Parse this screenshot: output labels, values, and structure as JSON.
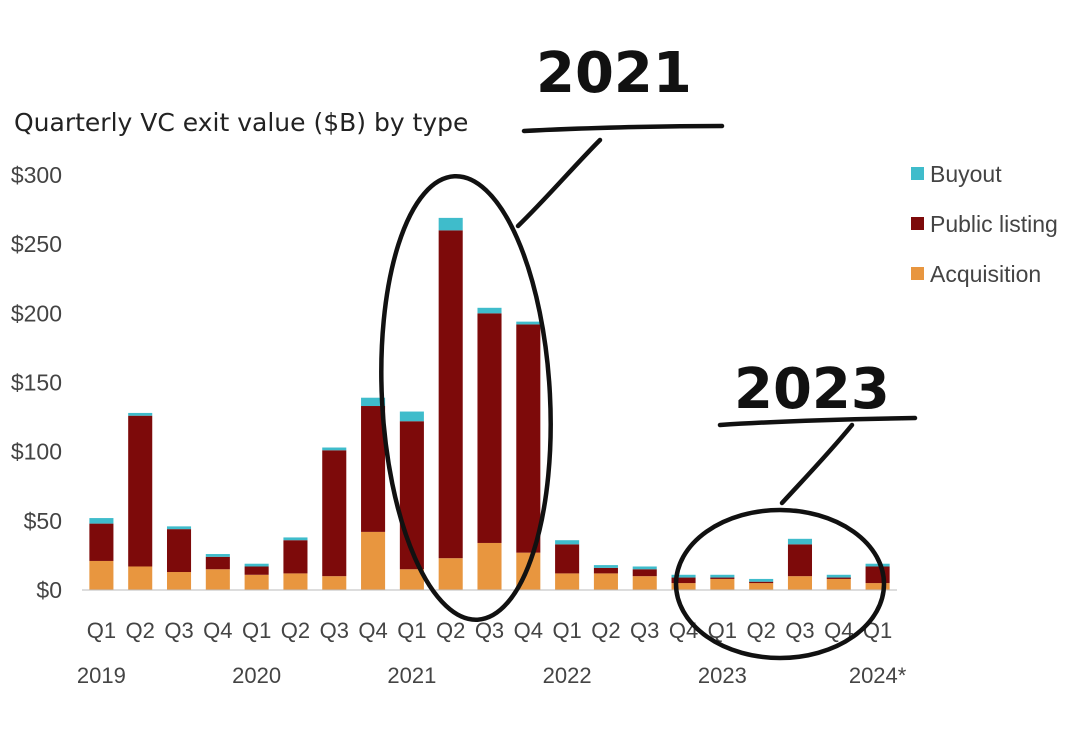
{
  "chart_data": {
    "type": "bar",
    "stacked": true,
    "title": "Quarterly VC exit value ($B) by type",
    "xlabel": "",
    "ylabel": "",
    "ylim": [
      0,
      300
    ],
    "yticks": [
      0,
      50,
      100,
      150,
      200,
      250,
      300
    ],
    "ytick_labels": [
      "$0",
      "$50",
      "$100",
      "$150",
      "$200",
      "$250",
      "$300"
    ],
    "grid": false,
    "legend_position": "top-right",
    "categories": [
      "Q1",
      "Q2",
      "Q3",
      "Q4",
      "Q1",
      "Q2",
      "Q3",
      "Q4",
      "Q1",
      "Q2",
      "Q3",
      "Q4",
      "Q1",
      "Q2",
      "Q3",
      "Q4",
      "Q1",
      "Q2",
      "Q3",
      "Q4",
      "Q1"
    ],
    "years": [
      {
        "label": "2019",
        "index": 0
      },
      {
        "label": "2020",
        "index": 4
      },
      {
        "label": "2021",
        "index": 8
      },
      {
        "label": "2022",
        "index": 12
      },
      {
        "label": "2023",
        "index": 16
      },
      {
        "label": "2024*",
        "index": 20
      }
    ],
    "series": [
      {
        "name": "Acquisition",
        "color": "#e8963f",
        "values": [
          21,
          17,
          13,
          15,
          11,
          12,
          10,
          42,
          15,
          23,
          34,
          27,
          12,
          12,
          10,
          5,
          8,
          5,
          10,
          8,
          5
        ]
      },
      {
        "name": "Public listing",
        "color": "#7d0a0a",
        "values": [
          27,
          109,
          31,
          9,
          6,
          24,
          91,
          91,
          107,
          237,
          166,
          165,
          21,
          4,
          5,
          4,
          1,
          1,
          23,
          1,
          12
        ]
      },
      {
        "name": "Buyout",
        "color": "#3fbccb",
        "values": [
          4,
          2,
          2,
          2,
          2,
          2,
          2,
          6,
          7,
          9,
          4,
          2,
          3,
          2,
          2,
          2,
          2,
          2,
          4,
          2,
          2
        ]
      }
    ],
    "legend_order": [
      "Buyout",
      "Public listing",
      "Acquisition"
    ],
    "annotations": [
      {
        "text": "2021",
        "highlight_range": [
          8,
          11
        ]
      },
      {
        "text": "2023",
        "highlight_range": [
          16,
          20
        ]
      }
    ]
  }
}
